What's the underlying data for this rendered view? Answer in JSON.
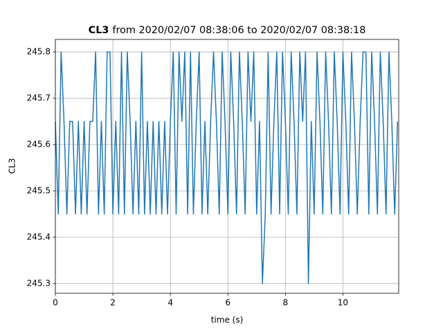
{
  "chart_data": {
    "type": "line",
    "title_bold": "CL3",
    "title": "from 2020/02/07 08:38:06 to 2020/02/07 08:38:18",
    "xlabel": "time (s)",
    "ylabel": "CL3",
    "x": [
      0,
      0.1,
      0.2,
      0.3,
      0.4,
      0.5,
      0.6,
      0.7,
      0.8,
      0.9,
      1,
      1.1,
      1.2,
      1.3,
      1.4,
      1.5,
      1.6,
      1.7,
      1.8,
      1.9,
      2,
      2.1,
      2.2,
      2.3,
      2.4,
      2.5,
      2.6,
      2.7,
      2.8,
      2.9,
      3,
      3.1,
      3.2,
      3.3,
      3.4,
      3.5,
      3.6,
      3.7,
      3.8,
      3.9,
      4,
      4.1,
      4.2,
      4.3,
      4.4,
      4.5,
      4.6,
      4.7,
      4.8,
      4.9,
      5,
      5.1,
      5.2,
      5.3,
      5.4,
      5.5,
      5.6,
      5.7,
      5.8,
      5.9,
      6,
      6.1,
      6.2,
      6.3,
      6.4,
      6.5,
      6.6,
      6.7,
      6.8,
      6.9,
      7,
      7.1,
      7.2,
      7.3,
      7.4,
      7.5,
      7.6,
      7.7,
      7.8,
      7.9,
      8,
      8.1,
      8.2,
      8.3,
      8.4,
      8.5,
      8.6,
      8.7,
      8.8,
      8.9,
      9,
      9.1,
      9.2,
      9.3,
      9.4,
      9.5,
      9.6,
      9.7,
      9.8,
      9.9,
      10,
      10.1,
      10.2,
      10.3,
      10.4,
      10.5,
      10.6,
      10.7,
      10.8,
      10.9,
      11,
      11.1,
      11.2,
      11.3,
      11.4,
      11.5,
      11.6,
      11.7,
      11.8,
      11.9
    ],
    "series": [
      {
        "color": "#1f77b4",
        "values": [
          245.65,
          245.45,
          245.8,
          245.65,
          245.45,
          245.65,
          245.65,
          245.45,
          245.65,
          245.45,
          245.65,
          245.45,
          245.65,
          245.65,
          245.8,
          245.45,
          245.65,
          245.45,
          245.8,
          245.8,
          245.45,
          245.65,
          245.45,
          245.8,
          245.45,
          245.8,
          245.65,
          245.45,
          245.65,
          245.45,
          245.8,
          245.45,
          245.65,
          245.45,
          245.65,
          245.45,
          245.65,
          245.45,
          245.65,
          245.45,
          245.65,
          245.8,
          245.45,
          245.8,
          245.65,
          245.8,
          245.45,
          245.8,
          245.45,
          245.65,
          245.8,
          245.45,
          245.65,
          245.45,
          245.65,
          245.8,
          245.65,
          245.45,
          245.8,
          245.65,
          245.45,
          245.8,
          245.65,
          245.45,
          245.8,
          245.65,
          245.45,
          245.8,
          245.65,
          245.8,
          245.45,
          245.65,
          245.3,
          245.45,
          245.8,
          245.45,
          245.65,
          245.8,
          245.45,
          245.8,
          245.65,
          245.45,
          245.8,
          245.65,
          245.45,
          245.8,
          245.65,
          245.8,
          245.3,
          245.65,
          245.45,
          245.8,
          245.65,
          245.45,
          245.8,
          245.65,
          245.45,
          245.8,
          245.65,
          245.45,
          245.8,
          245.65,
          245.45,
          245.8,
          245.65,
          245.45,
          245.65,
          245.8,
          245.8,
          245.45,
          245.8,
          245.65,
          245.45,
          245.8,
          245.65,
          245.45,
          245.8,
          245.65,
          245.45,
          245.65
        ]
      }
    ],
    "xlim": [
      0,
      11.94
    ],
    "xticks": [
      0,
      2,
      4,
      6,
      8,
      10
    ],
    "ylim": [
      245.279,
      245.827
    ],
    "yticks": [
      245.3,
      245.4,
      245.5,
      245.6,
      245.7,
      245.8
    ],
    "grid": true
  }
}
